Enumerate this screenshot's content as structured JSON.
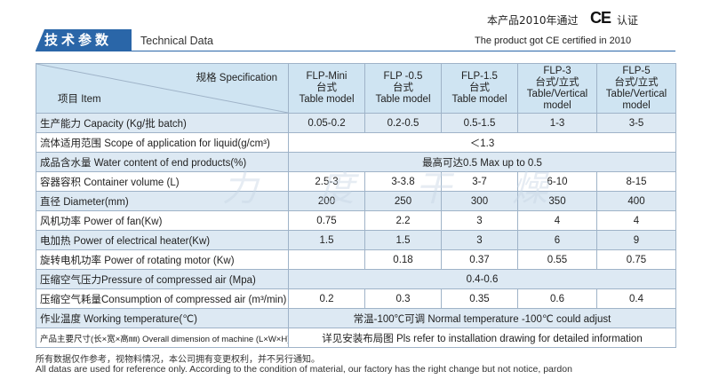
{
  "header": {
    "title_cn": "技术参数",
    "title_en": "Technical Data",
    "cert_cn_left": "本产品2010年通过",
    "ce_mark": "CE",
    "cert_cn_right": "认证",
    "cert_en": "The product got CE certified in 2010"
  },
  "table": {
    "corner_top": "规格 Specification",
    "corner_bottom": "项目 Item",
    "columns": [
      {
        "name": "FLP-Mini",
        "line2": "台式",
        "line3": "Table model",
        "line4": ""
      },
      {
        "name": "FLP -0.5",
        "line2": "台式",
        "line3": "Table model",
        "line4": ""
      },
      {
        "name": "FLP-1.5",
        "line2": "台式",
        "line3": "Table model",
        "line4": ""
      },
      {
        "name": "FLP-3",
        "line2": "台式/立式",
        "line3": "Table/Vertical",
        "line4": "model"
      },
      {
        "name": "FLP-5",
        "line2": "台式/立式",
        "line3": "Table/Vertical",
        "line4": "model"
      }
    ],
    "rows": [
      {
        "label": "生产能力 Capacity (Kg/批 batch)",
        "values": [
          "0.05-0.2",
          "0.2-0.5",
          "0.5-1.5",
          "1-3",
          "3-5"
        ]
      },
      {
        "label": "流体适用范围 Scope of application for liquid(g/cm³)",
        "span": "＜1.3"
      },
      {
        "label": "成品含水量 Water content of end products(%)",
        "span": "最高可达0.5   Max up to 0.5"
      },
      {
        "label": "容器容积 Container volume (L)",
        "values": [
          "2.5-3",
          "3-3.8",
          "3-7",
          "6-10",
          "8-15"
        ]
      },
      {
        "label": "直径 Diameter(mm)",
        "values": [
          "200",
          "250",
          "300",
          "350",
          "400"
        ]
      },
      {
        "label": "风机功率 Power of fan(Kw)",
        "values": [
          "0.75",
          "2.2",
          "3",
          "4",
          "4"
        ]
      },
      {
        "label": "电加热 Power of electrical heater(Kw)",
        "values": [
          "1.5",
          "1.5",
          "3",
          "6",
          "9"
        ]
      },
      {
        "label": "旋转电机功率 Power of rotating motor (Kw)",
        "values": [
          "",
          "0.18",
          "0.37",
          "0.55",
          "0.75"
        ]
      },
      {
        "label": "压缩空气压力Pressure of compressed air (Mpa)",
        "span": "0.4-0.6"
      },
      {
        "label": "压缩空气耗量Consumption of compressed air (m³/min)",
        "values": [
          "0.2",
          "0.3",
          "0.35",
          "0.6",
          "0.4"
        ]
      },
      {
        "label": "作业温度 Working temperature(℃)",
        "span": "常温-100℃可调 Normal temperature -100℃ could adjust"
      },
      {
        "label": "产品主要尺寸(长×宽×高㎜) Overall dimension of machine (L×W×H)",
        "span": "详见安装布局图 Pls refer to installation drawing for detailed information"
      }
    ]
  },
  "watermark": "力 度 干 燥",
  "footer": {
    "cn": "所有数据仅作参考，视物料情况，本公司拥有变更权利，并不另行通知。",
    "en": "All datas are used for reference only. According to the condition of material, our factory has the right change but not notice, pardon"
  }
}
